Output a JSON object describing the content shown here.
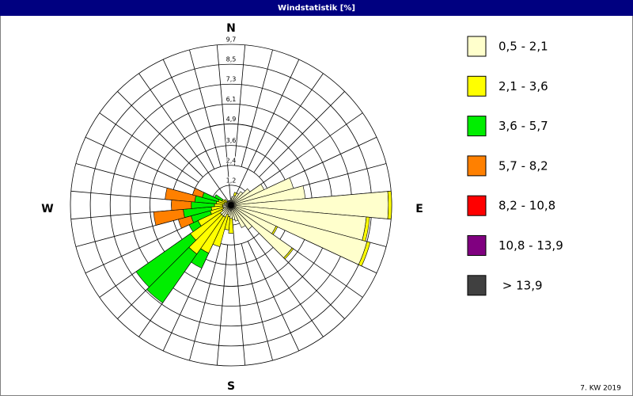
{
  "chart_data": {
    "type": "windrose",
    "title": "Windstatistik [%]",
    "annotation": "7. KW 2019",
    "compass": [
      "N",
      "E",
      "S",
      "W"
    ],
    "x": [
      0,
      10,
      20,
      30,
      40,
      50,
      60,
      70,
      80,
      90,
      100,
      110,
      120,
      130,
      140,
      150,
      160,
      170,
      180,
      190,
      200,
      210,
      220,
      230,
      240,
      250,
      260,
      270,
      280,
      290,
      300,
      310,
      320,
      330,
      340,
      350
    ],
    "rlim": [
      0,
      9.7
    ],
    "rticks": [
      {
        "value": 1.2,
        "label": "1,2"
      },
      {
        "value": 2.4,
        "label": "2,4"
      },
      {
        "value": 3.6,
        "label": "3,6"
      },
      {
        "value": 4.9,
        "label": "4,9"
      },
      {
        "value": 6.1,
        "label": "6,1"
      },
      {
        "value": 7.3,
        "label": "7,3"
      },
      {
        "value": 8.5,
        "label": "8,5"
      },
      {
        "value": 9.7,
        "label": "9,7"
      }
    ],
    "grid": true,
    "series": [
      {
        "name": "0,5 - 2,1",
        "color": "#ffffcc",
        "values": [
          0.4,
          0.5,
          0.6,
          0.8,
          1.0,
          1.4,
          2.2,
          3.9,
          4.5,
          9.5,
          8.2,
          8.5,
          3.0,
          4.5,
          1.8,
          1.5,
          1.0,
          0.9,
          0.8,
          0.7,
          0.6,
          0.8,
          0.8,
          0.8,
          0.6,
          0.5,
          0.5,
          0.5,
          0.4,
          0.4,
          0.3,
          0.3,
          0.3,
          0.3,
          0.3,
          0.3
        ]
      },
      {
        "name": "2,1 - 3,6",
        "color": "#ffff00",
        "values": [
          0,
          0,
          0.2,
          0,
          0,
          0,
          0,
          0,
          0,
          0.2,
          0.2,
          0.2,
          0.1,
          0.1,
          0,
          0,
          0,
          0,
          0.9,
          0.8,
          2.0,
          2.4,
          2.8,
          2.2,
          1.6,
          0.8,
          0.7,
          0.5,
          0.5,
          0.4,
          0.3,
          0.2,
          0,
          0,
          0,
          0
        ]
      },
      {
        "name": "3,6 - 5,7",
        "color": "#00ee00",
        "values": [
          0,
          0,
          0,
          0,
          0,
          0,
          0,
          0,
          0,
          0,
          0,
          0,
          0,
          0,
          0,
          0,
          0,
          0,
          0,
          0,
          0,
          1.0,
          3.6,
          4.0,
          0.6,
          1.2,
          1.7,
          1.4,
          1.3,
          1.0,
          0.5,
          0,
          0,
          0,
          0,
          0
        ]
      },
      {
        "name": "5,7 - 8,2",
        "color": "#ff8000",
        "values": [
          0,
          0,
          0,
          0,
          0,
          0,
          0,
          0,
          0,
          0,
          0,
          0,
          0,
          0,
          0,
          0,
          0,
          0,
          0,
          0,
          0,
          0,
          0,
          0,
          0,
          0.8,
          1.8,
          1.2,
          1.8,
          0.6,
          0,
          0,
          0,
          0,
          0,
          0
        ]
      },
      {
        "name": "8,2 - 10,8",
        "color": "#ff0000",
        "values": [
          0,
          0,
          0,
          0,
          0,
          0,
          0,
          0,
          0,
          0,
          0,
          0,
          0,
          0,
          0,
          0,
          0,
          0,
          0,
          0,
          0,
          0,
          0,
          0,
          0,
          0,
          0,
          0,
          0,
          0,
          0,
          0,
          0,
          0,
          0,
          0
        ]
      },
      {
        "name": "10,8 - 13,9",
        "color": "#800080",
        "values": [
          0,
          0,
          0,
          0,
          0,
          0,
          0,
          0,
          0,
          0,
          0,
          0,
          0,
          0,
          0,
          0,
          0,
          0,
          0,
          0,
          0,
          0,
          0,
          0,
          0,
          0,
          0,
          0,
          0,
          0,
          0,
          0,
          0,
          0,
          0,
          0
        ]
      },
      {
        "name": " > 13,9",
        "color": "#404040",
        "values": [
          0,
          0,
          0,
          0,
          0,
          0,
          0,
          0,
          0,
          0,
          0,
          0,
          0,
          0,
          0,
          0,
          0,
          0,
          0,
          0,
          0,
          0,
          0,
          0,
          0,
          0,
          0,
          0,
          0,
          0,
          0,
          0,
          0,
          0,
          0,
          0
        ]
      }
    ]
  }
}
